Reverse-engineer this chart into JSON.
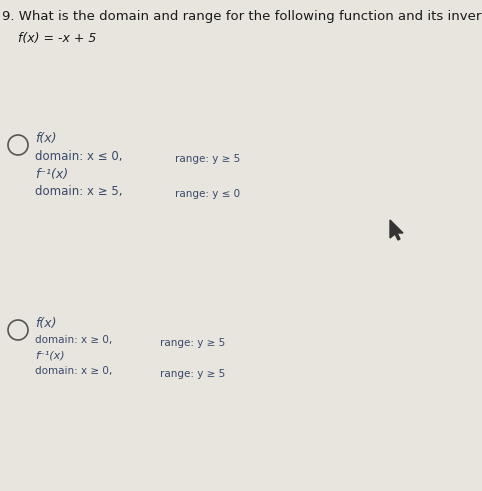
{
  "background_color": "#e8e4de",
  "text_color": "#3a4a6b",
  "title_color": "#1a1a1a",
  "question_number": "9.",
  "question_text": "What is the domain and range for the following function and its inverse",
  "function_text": "f(x) = -x + 5",
  "option1": {
    "fx_label": "f(x)",
    "fx_domain": "domain: x ≤ 0",
    "fx_comma": ",",
    "fx_range": "range: y ≥ 5",
    "inv_label": "f⁻¹(x)",
    "inv_domain": "domain: x ≥ 5",
    "inv_comma": ",",
    "inv_range": "range: y ≤ 0"
  },
  "option2": {
    "fx_label": "f(x)",
    "fx_domain": "domain: x ≥ 0",
    "fx_comma": ",",
    "fx_range": "range: y ≥ 5",
    "inv_label": "f⁻¹(x)",
    "inv_domain": "domain: x ≥ 0",
    "inv_comma": ",",
    "inv_range": "range: y ≥ 5"
  }
}
